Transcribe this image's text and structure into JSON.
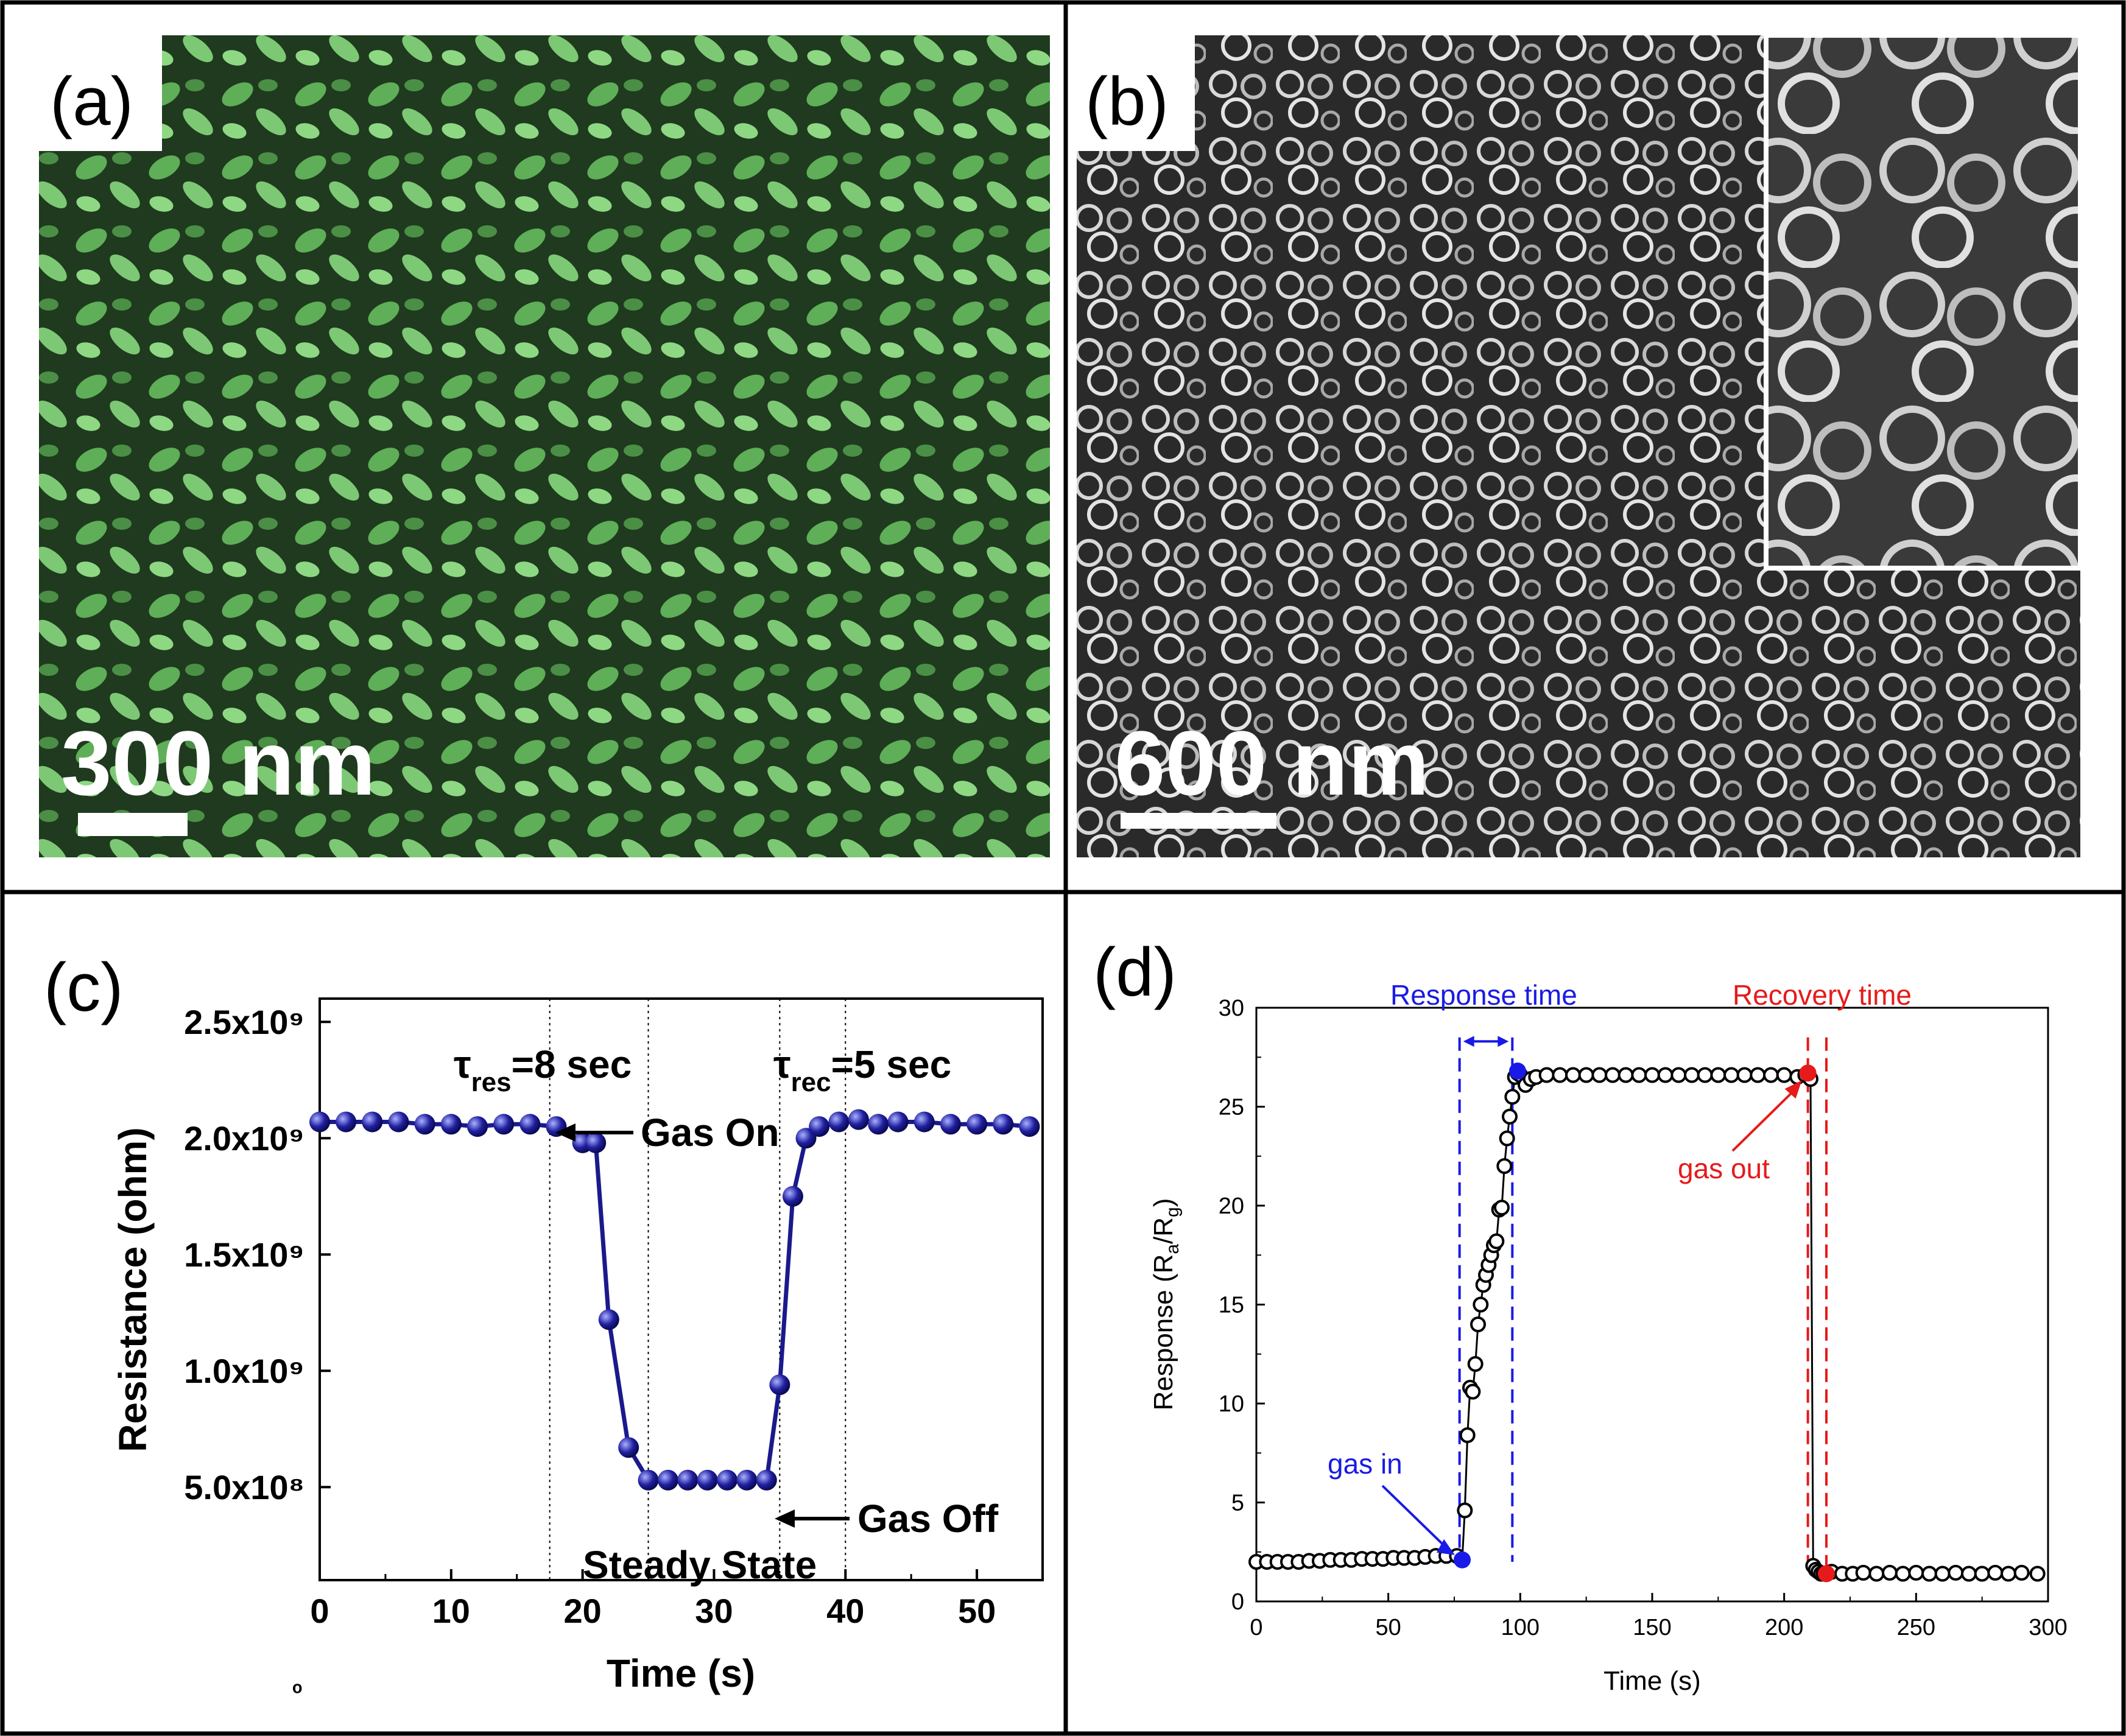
{
  "panels": {
    "a": {
      "label": "(a)",
      "scale_bar": "300 nm",
      "tint": "#6fcf6a"
    },
    "b": {
      "label": "(b)",
      "scale_bar": "600 nm",
      "tint": "#bdbdbd"
    },
    "c": {
      "label": "(c)"
    },
    "d": {
      "label": "(d)"
    }
  },
  "chart_data": [
    {
      "panel": "c",
      "type": "line",
      "xlabel": "Time (s)",
      "ylabel": "Resistance (ohm)",
      "xlim": [
        0,
        55
      ],
      "ylim": [
        100000000.0,
        2600000000.0
      ],
      "x_ticks": [
        "0",
        "10",
        "20",
        "30",
        "40",
        "50"
      ],
      "y_ticks": [
        "5.0x10⁸",
        "1.0x10⁹",
        "1.5x10⁹",
        "2.0x10⁹",
        "2.5x10⁹"
      ],
      "y_tick_values": [
        500000000.0,
        1000000000.0,
        1500000000.0,
        2000000000.0,
        2500000000.0
      ],
      "vlines": [
        17.5,
        25,
        35,
        40
      ],
      "series": [
        {
          "color": "#1a1a8c",
          "x": [
            0,
            2,
            4,
            6,
            8,
            10,
            12,
            14,
            16,
            18,
            20,
            21,
            22,
            23.5,
            25,
            26.5,
            28,
            29.5,
            31,
            32.5,
            34,
            35,
            36,
            37,
            38,
            39.5,
            41,
            42.5,
            44,
            46,
            48,
            50,
            52,
            54
          ],
          "values": [
            2070000000.0,
            2070000000.0,
            2070000000.0,
            2070000000.0,
            2060000000.0,
            2060000000.0,
            2050000000.0,
            2060000000.0,
            2060000000.0,
            2050000000.0,
            1980000000.0,
            1980000000.0,
            1220000000.0,
            670000000.0,
            530000000.0,
            530000000.0,
            530000000.0,
            530000000.0,
            530000000.0,
            530000000.0,
            530000000.0,
            940000000.0,
            1750000000.0,
            2000000000.0,
            2050000000.0,
            2070000000.0,
            2080000000.0,
            2060000000.0,
            2070000000.0,
            2070000000.0,
            2060000000.0,
            2060000000.0,
            2060000000.0,
            2050000000.0
          ]
        }
      ],
      "annotations": {
        "tau_res": "τ",
        "tau_res_sub": "res",
        "tau_res_value": "=8 sec",
        "tau_rec": "τ",
        "tau_rec_sub": "rec",
        "tau_rec_value": "=5 sec",
        "gas_on": "Gas On",
        "gas_off": "Gas Off",
        "steady": "Steady State",
        "stray": "ᵒ"
      }
    },
    {
      "panel": "d",
      "type": "scatter",
      "xlabel": "Time (s)",
      "ylabel": "Response (R",
      "ylabel_sub_a": "a",
      "ylabel_mid": "/R",
      "ylabel_sub_g": "g",
      "ylabel_end": ")",
      "xlim": [
        0,
        300
      ],
      "ylim": [
        0,
        30
      ],
      "x_ticks": [
        0,
        50,
        100,
        150,
        200,
        250,
        300
      ],
      "y_ticks": [
        0,
        5,
        10,
        15,
        20,
        25,
        30
      ],
      "series": [
        {
          "color": "#000000",
          "x": [
            0,
            4,
            8,
            12,
            16,
            20,
            24,
            28,
            32,
            36,
            40,
            44,
            48,
            52,
            56,
            60,
            64,
            68,
            72,
            76,
            78,
            79,
            80,
            81,
            82,
            83,
            84,
            85,
            86,
            87,
            88,
            89,
            90,
            91,
            92,
            93,
            94,
            95,
            96,
            97,
            98,
            99,
            100,
            102,
            104,
            106,
            110,
            115,
            120,
            125,
            130,
            135,
            140,
            145,
            150,
            155,
            160,
            165,
            170,
            175,
            180,
            185,
            190,
            195,
            200,
            205,
            208,
            210,
            211,
            212,
            213,
            214,
            215,
            218,
            222,
            226,
            230,
            235,
            240,
            245,
            250,
            255,
            260,
            265,
            270,
            275,
            280,
            285,
            290,
            296
          ],
          "values": [
            2.0,
            2.0,
            2.0,
            2.0,
            2.0,
            2.05,
            2.05,
            2.1,
            2.1,
            2.1,
            2.15,
            2.15,
            2.15,
            2.2,
            2.2,
            2.2,
            2.25,
            2.3,
            2.3,
            2.3,
            2.1,
            4.6,
            8.4,
            10.8,
            10.6,
            12.0,
            14.0,
            15.0,
            16.0,
            16.5,
            17.0,
            17.5,
            18.0,
            18.2,
            19.8,
            19.9,
            22.0,
            23.4,
            24.5,
            25.5,
            26.5,
            26.7,
            26.6,
            26.1,
            26.4,
            26.5,
            26.6,
            26.6,
            26.6,
            26.6,
            26.6,
            26.6,
            26.6,
            26.6,
            26.6,
            26.6,
            26.6,
            26.6,
            26.6,
            26.6,
            26.6,
            26.6,
            26.6,
            26.6,
            26.6,
            26.5,
            26.6,
            26.4,
            1.8,
            1.6,
            1.5,
            1.4,
            1.4,
            1.5,
            1.4,
            1.4,
            1.45,
            1.4,
            1.45,
            1.4,
            1.45,
            1.4,
            1.4,
            1.45,
            1.4,
            1.4,
            1.45,
            1.4,
            1.45,
            1.4
          ]
        }
      ],
      "highlights": [
        {
          "name": "gas-in-point",
          "x": 78,
          "y": 2.1,
          "color": "#1a1ae6"
        },
        {
          "name": "response-end-point",
          "x": 99,
          "y": 26.8,
          "color": "#1a1ae6"
        },
        {
          "name": "gas-out-point",
          "x": 209,
          "y": 26.7,
          "color": "#e61a1a"
        },
        {
          "name": "recovery-end-point",
          "x": 216,
          "y": 1.4,
          "color": "#e61a1a"
        }
      ],
      "blue_lines": [
        77,
        97
      ],
      "red_lines": [
        209,
        216
      ],
      "annotations": {
        "response_time": "Response time",
        "recovery_time": "Recovery time",
        "gas_in": "gas in",
        "gas_out": "gas out"
      },
      "colors": {
        "blue": "#1a1ae6",
        "red": "#e61a1a"
      }
    }
  ]
}
